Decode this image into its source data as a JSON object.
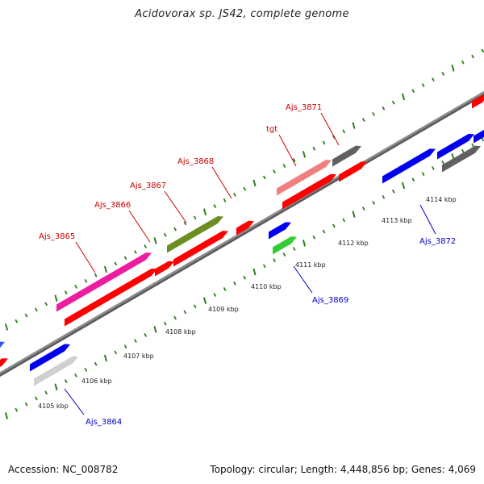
{
  "title": "Acidovorax sp. JS42, complete genome",
  "footer": {
    "accession": "Accession: NC_008782",
    "summary": "Topology: circular; Length: 4,448,856 bp; Genes: 4,069"
  },
  "colors": {
    "backbone": "#8c8c8c",
    "tick": "#2e7d1e",
    "label_forward": "#cc0000",
    "label_reverse": "#0000cc"
  },
  "axis": {
    "unit": "kbp",
    "ticks": [
      {
        "kbp": 4105,
        "label": "4105 kbp"
      },
      {
        "kbp": 4106,
        "label": "4106 kbp"
      },
      {
        "kbp": 4107,
        "label": "4107 kbp"
      },
      {
        "kbp": 4108,
        "label": "4108 kbp"
      },
      {
        "kbp": 4109,
        "label": "4109 kbp"
      },
      {
        "kbp": 4110,
        "label": "4110 kbp"
      },
      {
        "kbp": 4111,
        "label": "4111 kbp"
      },
      {
        "kbp": 4112,
        "label": "4112 kbp"
      },
      {
        "kbp": 4113,
        "label": "4113 kbp"
      },
      {
        "kbp": 4114,
        "label": "4114 kbp"
      }
    ]
  },
  "labels": [
    {
      "text": "Ajs_3865",
      "strand": "forward"
    },
    {
      "text": "Ajs_3866",
      "strand": "forward"
    },
    {
      "text": "Ajs_3867",
      "strand": "forward"
    },
    {
      "text": "Ajs_3868",
      "strand": "forward"
    },
    {
      "text": "tgt",
      "strand": "forward"
    },
    {
      "text": "Ajs_3871",
      "strand": "forward"
    },
    {
      "text": "Ajs_3864",
      "strand": "reverse"
    },
    {
      "text": "Ajs_3869",
      "strand": "reverse"
    },
    {
      "text": "Ajs_3872",
      "strand": "reverse"
    }
  ],
  "features": [
    {
      "color": "#ff0000",
      "name": "forward-feature"
    },
    {
      "color": "#ff0000",
      "name": "forward-feature"
    },
    {
      "color": "#ee1c9e",
      "name": "ajs-3865-feature"
    },
    {
      "color": "#ff0000",
      "name": "forward-feature"
    },
    {
      "color": "#ff0000",
      "name": "forward-feature"
    },
    {
      "color": "#6b8e23",
      "name": "ajs-3867-feature"
    },
    {
      "color": "#ff0000",
      "name": "forward-feature"
    },
    {
      "color": "#ff0000",
      "name": "forward-feature"
    },
    {
      "color": "#f08080",
      "name": "tgt-feature"
    },
    {
      "color": "#ff0000",
      "name": "forward-feature"
    },
    {
      "color": "#606060",
      "name": "ajs-3871-feature"
    },
    {
      "color": "#ff0000",
      "name": "forward-feature"
    },
    {
      "color": "#0000ee",
      "name": "reverse-feature"
    },
    {
      "color": "#d0d0d0",
      "name": "ajs-3864-feature"
    },
    {
      "color": "#0000ee",
      "name": "reverse-feature"
    },
    {
      "color": "#33cc33",
      "name": "ajs-3869-feature"
    },
    {
      "color": "#0000ee",
      "name": "reverse-feature"
    },
    {
      "color": "#0000ee",
      "name": "reverse-feature"
    },
    {
      "color": "#606060",
      "name": "ajs-3872-feature"
    },
    {
      "color": "#0000ee",
      "name": "reverse-feature"
    },
    {
      "color": "#3355ee",
      "name": "reverse-feature"
    }
  ]
}
